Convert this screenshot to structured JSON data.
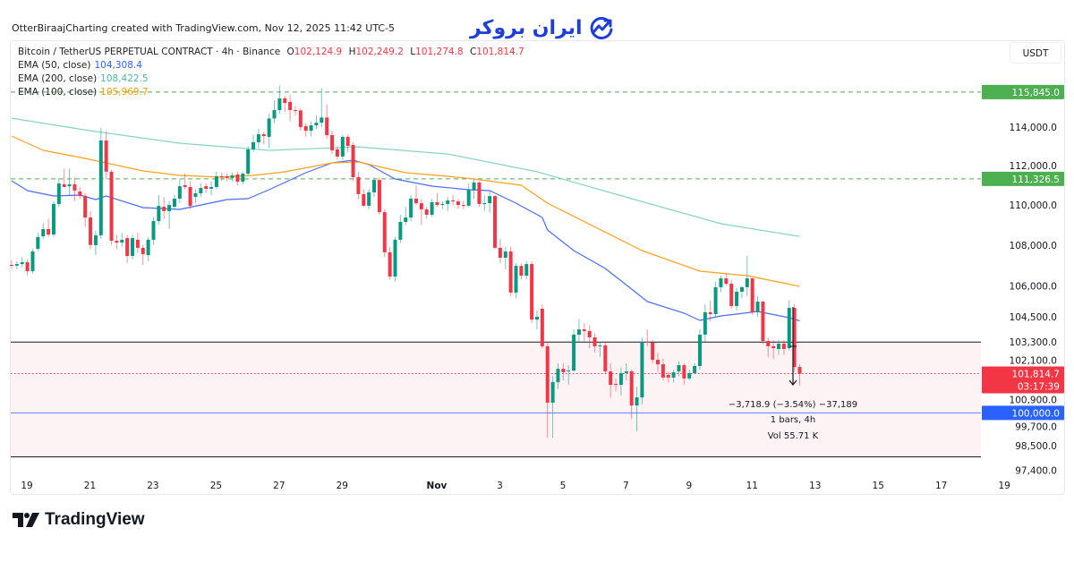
{
  "header": {
    "attribution": "OtterBiraajCharting created with TradingView.com, Nov 12, 2025 11:42 UTC-5"
  },
  "logo": {
    "text": "ایران بروکر",
    "icon": "chart-trend-circle-icon",
    "color": "#1d3fd6"
  },
  "footer": {
    "brand": "TradingView",
    "icon": "tradingview-logo-icon"
  },
  "legend": {
    "symbol": "Bitcoin / TetherUS PERPETUAL CONTRACT · 4h · Binance",
    "open_label": "O",
    "open": "102,124.9",
    "high_label": "H",
    "high": "102,249.2",
    "low_label": "L",
    "low": "101,274.8",
    "close_label": "C",
    "close": "101,814.7",
    "ema50": {
      "label": "EMA (50, close)",
      "value": "104,308.4"
    },
    "ema200": {
      "label": "EMA (200, close)",
      "value": "108,422.5"
    },
    "ema100": {
      "label": "EMA (100, close)",
      "value": "105,969.7"
    }
  },
  "price_axis": {
    "currency": "USDT"
  },
  "measurement": {
    "change": "−3,718.9 (−3.54%) −37,189",
    "bars": "1 bars, 4h",
    "volume": "Vol 55.71 K"
  },
  "chart_data": {
    "type": "candlestick",
    "interval": "4h",
    "y_scale": "log",
    "ylim": [
      97200,
      118600
    ],
    "grid": false,
    "colors": {
      "up": "#089981",
      "down": "#f23645"
    },
    "x_ticks": [
      "19",
      "21",
      "23",
      "25",
      "27",
      "29",
      "Nov",
      "3",
      "5",
      "7",
      "9",
      "11",
      "13",
      "15",
      "17",
      "19"
    ],
    "y_ticks": [
      {
        "value": 114000,
        "label": "114,000.0"
      },
      {
        "value": 112000,
        "label": "112,000.0"
      },
      {
        "value": 110000,
        "label": "110,000.0"
      },
      {
        "value": 108000,
        "label": "108,000.0"
      },
      {
        "value": 106000,
        "label": "106,000.0"
      },
      {
        "value": 104500,
        "label": "104,500.0"
      },
      {
        "value": 103300,
        "label": "103,300.0"
      },
      {
        "value": 102100,
        "label": "102,100.0"
      },
      {
        "value": 100900,
        "label": "100,900.0"
      },
      {
        "value": 99700,
        "label": "99,700.0"
      },
      {
        "value": 98500,
        "label": "98,500.0"
      },
      {
        "value": 97400,
        "label": "97,400.0"
      }
    ],
    "price_labels": [
      {
        "value": 115845.0,
        "label": "115,845.0",
        "color": "#4caf50"
      },
      {
        "value": 111326.5,
        "label": "111,326.5",
        "color": "#4caf50"
      },
      {
        "value": 101814.7,
        "label": "101,814.7",
        "sublabel": "03:17:39",
        "color": "#f23645"
      },
      {
        "value": 100000.0,
        "label": "100,000.0",
        "color": "#2962ff"
      }
    ],
    "horizontal_lines": [
      {
        "value": 115845.0,
        "style": "dashed",
        "color": "#4caf50"
      },
      {
        "value": 111326.5,
        "style": "dashed",
        "color": "#4caf50"
      },
      {
        "value": 103300,
        "style": "solid",
        "color": "#131722"
      },
      {
        "value": 100000,
        "style": "solid",
        "color": "#5b7cfa"
      },
      {
        "value": 98000,
        "style": "solid",
        "color": "#131722"
      },
      {
        "value": 101814.7,
        "style": "dotted",
        "color": "#f23645"
      }
    ],
    "zone": {
      "from": 103300,
      "to": 98000,
      "color": "#fdf3f4"
    },
    "indicators": [
      {
        "name": "EMA (50, close)",
        "color": "#4a6cf7",
        "points": [
          [
            1,
            111227
          ],
          [
            4,
            110727
          ],
          [
            9,
            110455
          ],
          [
            14,
            110500
          ],
          [
            17,
            110275
          ],
          [
            19,
            110455
          ],
          [
            26,
            109867
          ],
          [
            33,
            109776
          ],
          [
            42,
            110275
          ],
          [
            46,
            110319
          ],
          [
            50,
            110772
          ],
          [
            57,
            111640
          ],
          [
            62,
            112146
          ],
          [
            66,
            112283
          ],
          [
            69,
            112054
          ],
          [
            74,
            111319
          ],
          [
            81,
            110954
          ],
          [
            88,
            110772
          ],
          [
            92,
            110727
          ],
          [
            97,
            110092
          ],
          [
            102,
            109372
          ],
          [
            103,
            108745
          ],
          [
            108,
            107723
          ],
          [
            114,
            106844
          ],
          [
            119,
            105840
          ],
          [
            122,
            105233
          ],
          [
            129,
            104673
          ],
          [
            132,
            104330
          ],
          [
            136,
            104545
          ],
          [
            139,
            104630
          ],
          [
            143,
            104760
          ],
          [
            149,
            104460
          ],
          [
            151,
            104308.4
          ]
        ]
      },
      {
        "name": "EMA (200, close)",
        "color": "#86d3c3",
        "points": [
          [
            1,
            114470
          ],
          [
            16,
            113810
          ],
          [
            33,
            113160
          ],
          [
            50,
            112790
          ],
          [
            67,
            112970
          ],
          [
            84,
            112600
          ],
          [
            101,
            111690
          ],
          [
            119,
            110320
          ],
          [
            136,
            109060
          ],
          [
            151,
            108422.5
          ]
        ]
      },
      {
        "name": "EMA (100, close)",
        "color": "#ff9f1c",
        "points": [
          [
            1,
            113533
          ],
          [
            7,
            112790
          ],
          [
            15,
            112375
          ],
          [
            26,
            111730
          ],
          [
            33,
            111502
          ],
          [
            41,
            111410
          ],
          [
            47,
            111502
          ],
          [
            53,
            111685
          ],
          [
            62,
            112146
          ],
          [
            67,
            112190
          ],
          [
            76,
            111640
          ],
          [
            84,
            111456
          ],
          [
            89,
            111319
          ],
          [
            98,
            110999
          ],
          [
            103,
            110092
          ],
          [
            121,
            107723
          ],
          [
            132,
            106712
          ],
          [
            139,
            106536
          ],
          [
            141,
            106493
          ],
          [
            151,
            105969.7
          ]
        ]
      }
    ],
    "candles": [
      [
        107020,
        107250,
        106850,
        106980
      ],
      [
        106980,
        107200,
        106800,
        107060
      ],
      [
        107060,
        107400,
        106900,
        107150
      ],
      [
        107150,
        107300,
        106500,
        106710
      ],
      [
        106710,
        107800,
        106600,
        107680
      ],
      [
        107810,
        108600,
        107700,
        108390
      ],
      [
        108430,
        109100,
        108300,
        108790
      ],
      [
        108790,
        109300,
        108400,
        108520
      ],
      [
        108520,
        110200,
        108400,
        110050
      ],
      [
        110050,
        111350,
        109900,
        111090
      ],
      [
        111050,
        111850,
        110900,
        110910
      ],
      [
        110950,
        111850,
        110500,
        111050
      ],
      [
        111050,
        111400,
        110200,
        110730
      ],
      [
        110680,
        110900,
        110300,
        110460
      ],
      [
        110460,
        110600,
        108900,
        109370
      ],
      [
        109370,
        109700,
        107800,
        108000
      ],
      [
        107990,
        108700,
        107500,
        108480
      ],
      [
        108480,
        113950,
        108300,
        113300
      ],
      [
        113300,
        113800,
        111300,
        111690
      ],
      [
        111690,
        111800,
        108000,
        108210
      ],
      [
        108210,
        108500,
        107800,
        108120
      ],
      [
        108120,
        108600,
        107900,
        108260
      ],
      [
        108340,
        108500,
        107100,
        107460
      ],
      [
        107460,
        108500,
        107300,
        108340
      ],
      [
        108260,
        108600,
        107600,
        107860
      ],
      [
        107860,
        108000,
        107000,
        107550
      ],
      [
        107500,
        108400,
        107200,
        108260
      ],
      [
        108260,
        109400,
        108000,
        109190
      ],
      [
        109190,
        110500,
        109000,
        109960
      ],
      [
        109910,
        110400,
        109300,
        109690
      ],
      [
        109690,
        110200,
        108800,
        110000
      ],
      [
        109910,
        110500,
        109800,
        110320
      ],
      [
        110320,
        111300,
        110100,
        110950
      ],
      [
        111000,
        111600,
        110800,
        110910
      ],
      [
        110910,
        111200,
        109800,
        109960
      ],
      [
        110410,
        110800,
        110100,
        110590
      ],
      [
        110590,
        111100,
        110400,
        110860
      ],
      [
        110950,
        111100,
        110600,
        110820
      ],
      [
        110820,
        111200,
        110500,
        110910
      ],
      [
        110910,
        111700,
        110800,
        111460
      ],
      [
        111460,
        111650,
        111200,
        111410
      ],
      [
        111460,
        111600,
        111200,
        111370
      ],
      [
        111370,
        111650,
        111200,
        111500
      ],
      [
        111550,
        111700,
        111000,
        111180
      ],
      [
        111180,
        111700,
        111050,
        111590
      ],
      [
        111590,
        113000,
        111500,
        112840
      ],
      [
        112840,
        113600,
        112700,
        113210
      ],
      [
        113210,
        113900,
        112900,
        113630
      ],
      [
        113630,
        113750,
        113100,
        113530
      ],
      [
        113490,
        114700,
        112900,
        114450
      ],
      [
        114450,
        115400,
        114200,
        114890
      ],
      [
        114890,
        116200,
        114700,
        115510
      ],
      [
        115510,
        115650,
        114800,
        115270
      ],
      [
        115320,
        115700,
        114300,
        114890
      ],
      [
        114890,
        115100,
        114600,
        114870
      ],
      [
        114870,
        115000,
        113800,
        114000
      ],
      [
        114050,
        114200,
        113500,
        113810
      ],
      [
        113810,
        114300,
        113500,
        114090
      ],
      [
        114090,
        114600,
        113900,
        114230
      ],
      [
        114230,
        116050,
        114000,
        114500
      ],
      [
        114500,
        115200,
        113400,
        113580
      ],
      [
        113580,
        113800,
        112600,
        112790
      ],
      [
        112840,
        113000,
        112300,
        112470
      ],
      [
        112470,
        113600,
        112300,
        113490
      ],
      [
        113490,
        113600,
        112700,
        113020
      ],
      [
        113070,
        113200,
        111200,
        111410
      ],
      [
        111410,
        111700,
        110300,
        110550
      ],
      [
        110550,
        110800,
        109900,
        109960
      ],
      [
        109960,
        110800,
        109800,
        110640
      ],
      [
        110640,
        111400,
        110400,
        111270
      ],
      [
        111270,
        111400,
        109500,
        109640
      ],
      [
        109640,
        109800,
        107400,
        107640
      ],
      [
        107640,
        107900,
        106300,
        106450
      ],
      [
        106450,
        108400,
        106200,
        108260
      ],
      [
        108260,
        109500,
        108100,
        109150
      ],
      [
        109150,
        109900,
        109000,
        109370
      ],
      [
        109370,
        110500,
        109200,
        110320
      ],
      [
        110320,
        111000,
        110000,
        110090
      ],
      [
        110090,
        110300,
        109000,
        109780
      ],
      [
        109780,
        109900,
        109300,
        109510
      ],
      [
        109510,
        110300,
        109400,
        110140
      ],
      [
        110140,
        110600,
        109900,
        110000
      ],
      [
        110000,
        110200,
        109800,
        110050
      ],
      [
        110050,
        110400,
        109700,
        110230
      ],
      [
        110230,
        110500,
        110000,
        110180
      ],
      [
        110180,
        110300,
        109800,
        110000
      ],
      [
        110000,
        110200,
        109800,
        109960
      ],
      [
        109960,
        111100,
        109900,
        110770
      ],
      [
        110770,
        111300,
        110300,
        111140
      ],
      [
        111140,
        111200,
        109900,
        110050
      ],
      [
        110050,
        110500,
        109700,
        110090
      ],
      [
        110090,
        110700,
        109600,
        110450
      ],
      [
        110450,
        110500,
        107800,
        107860
      ],
      [
        107860,
        108300,
        107100,
        107370
      ],
      [
        107370,
        107900,
        106800,
        107680
      ],
      [
        107680,
        107900,
        105500,
        105670
      ],
      [
        105670,
        107100,
        105400,
        106970
      ],
      [
        106970,
        107100,
        106300,
        106490
      ],
      [
        106490,
        107200,
        106300,
        107060
      ],
      [
        107060,
        107200,
        104200,
        104370
      ],
      [
        104370,
        104800,
        103900,
        104500
      ],
      [
        104890,
        105100,
        103000,
        103100
      ],
      [
        103100,
        103300,
        98870,
        100470
      ],
      [
        100470,
        101700,
        98870,
        101420
      ],
      [
        101420,
        102300,
        101100,
        102040
      ],
      [
        102040,
        102300,
        101500,
        101880
      ],
      [
        101920,
        102200,
        101300,
        101960
      ],
      [
        101960,
        103900,
        101900,
        103650
      ],
      [
        103650,
        104400,
        103300,
        103900
      ],
      [
        103900,
        104200,
        103300,
        103820
      ],
      [
        103820,
        104100,
        103000,
        103520
      ],
      [
        103520,
        103700,
        102800,
        103100
      ],
      [
        103100,
        103300,
        102600,
        103140
      ],
      [
        103140,
        103300,
        101800,
        101920
      ],
      [
        101920,
        102300,
        100700,
        101290
      ],
      [
        101330,
        101600,
        101000,
        101290
      ],
      [
        101290,
        102100,
        100800,
        101840
      ],
      [
        101840,
        102300,
        101500,
        101920
      ],
      [
        101920,
        102000,
        99730,
        100340
      ],
      [
        100340,
        101200,
        99160,
        100710
      ],
      [
        100710,
        103500,
        100400,
        103310
      ],
      [
        103310,
        103900,
        103100,
        103270
      ],
      [
        103270,
        103400,
        102300,
        102460
      ],
      [
        102460,
        102800,
        101900,
        102250
      ],
      [
        102250,
        102500,
        101500,
        101630
      ],
      [
        101750,
        101900,
        101400,
        101630
      ],
      [
        101630,
        102000,
        101400,
        101880
      ],
      [
        101920,
        102400,
        101700,
        102210
      ],
      [
        102210,
        102300,
        101300,
        101590
      ],
      [
        101590,
        102000,
        101500,
        101840
      ],
      [
        101840,
        102300,
        101800,
        102170
      ],
      [
        102170,
        103900,
        102000,
        103650
      ],
      [
        103650,
        105100,
        103300,
        104720
      ],
      [
        104720,
        105300,
        104300,
        104630
      ],
      [
        104630,
        106200,
        104500,
        105930
      ],
      [
        105930,
        106500,
        105700,
        106360
      ],
      [
        106360,
        106600,
        106000,
        106100
      ],
      [
        106100,
        106300,
        104900,
        105020
      ],
      [
        105020,
        105900,
        104800,
        105710
      ],
      [
        105710,
        106000,
        105400,
        105930
      ],
      [
        105930,
        107450,
        105500,
        106360
      ],
      [
        106360,
        106400,
        104600,
        104720
      ],
      [
        104720,
        105500,
        104500,
        105230
      ],
      [
        105230,
        105300,
        103200,
        103350
      ],
      [
        103350,
        103500,
        102600,
        103100
      ],
      [
        103100,
        103400,
        102500,
        103010
      ],
      [
        102970,
        103400,
        102700,
        103220
      ],
      [
        103220,
        103400,
        102700,
        102970
      ],
      [
        103010,
        105300,
        102900,
        104930
      ],
      [
        104930,
        105100,
        101900,
        102120
      ],
      [
        102124.9,
        102249.2,
        101274.8,
        101814.7
      ]
    ]
  }
}
